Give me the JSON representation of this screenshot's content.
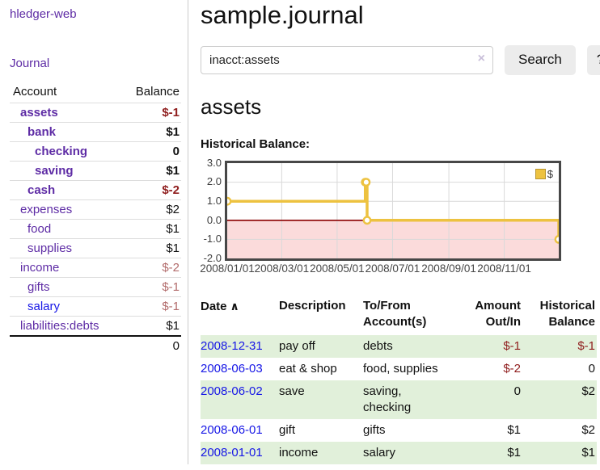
{
  "app": {
    "brand": "hledger-web"
  },
  "sidebar": {
    "journal_label": "Journal",
    "accounts_table": {
      "headers": [
        "Account",
        "Balance"
      ],
      "rows": [
        {
          "account": "assets",
          "balance": "$-1",
          "indent": 1,
          "bold": true,
          "balance_tone": "neg-strong",
          "link": "purple"
        },
        {
          "account": "bank",
          "balance": "$1",
          "indent": 2,
          "bold": true,
          "balance_tone": "",
          "link": "purple"
        },
        {
          "account": "checking",
          "balance": "0",
          "indent": 3,
          "bold": true,
          "balance_tone": "",
          "link": "purple"
        },
        {
          "account": "saving",
          "balance": "$1",
          "indent": 3,
          "bold": true,
          "balance_tone": "",
          "link": "purple"
        },
        {
          "account": "cash",
          "balance": "$-2",
          "indent": 2,
          "bold": true,
          "balance_tone": "neg-strong",
          "link": "purple"
        },
        {
          "account": "expenses",
          "balance": "$2",
          "indent": 1,
          "bold": false,
          "balance_tone": "",
          "link": "purple"
        },
        {
          "account": "food",
          "balance": "$1",
          "indent": 2,
          "bold": false,
          "balance_tone": "",
          "link": "purple"
        },
        {
          "account": "supplies",
          "balance": "$1",
          "indent": 2,
          "bold": false,
          "balance_tone": "",
          "link": "purple"
        },
        {
          "account": "income",
          "balance": "$-2",
          "indent": 1,
          "bold": false,
          "balance_tone": "neg-soft",
          "link": "purple"
        },
        {
          "account": "gifts",
          "balance": "$-1",
          "indent": 2,
          "bold": false,
          "balance_tone": "neg-soft",
          "link": "purple"
        },
        {
          "account": "salary",
          "balance": "$-1",
          "indent": 2,
          "bold": false,
          "balance_tone": "neg-soft",
          "link": "blue"
        },
        {
          "account": "liabilities:debts",
          "balance": "$1",
          "indent": 1,
          "bold": false,
          "balance_tone": "",
          "link": "purple"
        }
      ],
      "total": "0"
    }
  },
  "header": {
    "title": "sample.journal"
  },
  "search": {
    "value": "inacct:assets",
    "clear_icon": "×",
    "button_label": "Search",
    "help_label": "?"
  },
  "account_page": {
    "title": "assets",
    "chart_label": "Historical Balance:"
  },
  "chart_data": {
    "type": "line",
    "step": true,
    "legend_label": "$",
    "series_color": "#EDC240",
    "marker_fill": "#ffffff",
    "grid_color": "#d9d9d9",
    "zero_line_color": "#8b0000",
    "negative_region_fill": "#fbdbdb",
    "x_type": "date",
    "xlim": [
      "2008-01-01",
      "2008-12-31"
    ],
    "ylim": [
      -2,
      3
    ],
    "y_ticks": [
      {
        "v": 3,
        "label": "3.0"
      },
      {
        "v": 2,
        "label": "2.0"
      },
      {
        "v": 1,
        "label": "1.0"
      },
      {
        "v": 0,
        "label": "0.0"
      },
      {
        "v": -1,
        "label": "-1.0"
      },
      {
        "v": -2,
        "label": "-2.0"
      }
    ],
    "x_ticks": [
      {
        "date": "2008-01-01",
        "label": "2008/01/01"
      },
      {
        "date": "2008-03-01",
        "label": "2008/03/01"
      },
      {
        "date": "2008-05-01",
        "label": "2008/05/01"
      },
      {
        "date": "2008-07-01",
        "label": "2008/07/01"
      },
      {
        "date": "2008-09-01",
        "label": "2008/09/01"
      },
      {
        "date": "2008-11-01",
        "label": "2008/11/01"
      }
    ],
    "series": [
      {
        "name": "$",
        "points": [
          {
            "date": "2008-01-01",
            "value": 1
          },
          {
            "date": "2008-06-01",
            "value": 2
          },
          {
            "date": "2008-06-02",
            "value": 2
          },
          {
            "date": "2008-06-03",
            "value": 0
          },
          {
            "date": "2008-12-31",
            "value": -1
          }
        ]
      }
    ]
  },
  "transactions": {
    "sort_icon": "∧",
    "headers": [
      {
        "label": "Date",
        "align": "left",
        "sorted": true
      },
      {
        "label": "Description",
        "align": "left"
      },
      {
        "label": "To/From\nAccount(s)",
        "align": "left"
      },
      {
        "label": "Amount\nOut/In",
        "align": "right"
      },
      {
        "label": "Historical\nBalance",
        "align": "right"
      }
    ],
    "rows": [
      {
        "date": "2008-12-31",
        "description": "pay off",
        "accounts": "debts",
        "amount": "$-1",
        "amount_tone": "neg-strong",
        "balance": "$-1",
        "balance_tone": "neg-strong",
        "striped": true
      },
      {
        "date": "2008-06-03",
        "description": "eat & shop",
        "accounts": "food, supplies",
        "amount": "$-2",
        "amount_tone": "neg-strong",
        "balance": "0",
        "balance_tone": "",
        "striped": false
      },
      {
        "date": "2008-06-02",
        "description": "save",
        "accounts": "saving,\nchecking",
        "amount": "0",
        "amount_tone": "",
        "balance": "$2",
        "balance_tone": "",
        "striped": true
      },
      {
        "date": "2008-06-01",
        "description": "gift",
        "accounts": "gifts",
        "amount": "$1",
        "amount_tone": "",
        "balance": "$2",
        "balance_tone": "",
        "striped": false
      },
      {
        "date": "2008-01-01",
        "description": "income",
        "accounts": "salary",
        "amount": "$1",
        "amount_tone": "",
        "balance": "$1",
        "balance_tone": "",
        "striped": true
      }
    ]
  }
}
